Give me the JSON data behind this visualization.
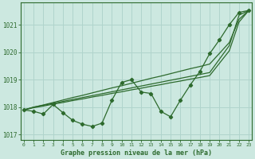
{
  "title": "Graphe pression niveau de la mer (hPa)",
  "bg_color": "#cce8e0",
  "line_color": "#2d6a2d",
  "grid_color": "#b0d4cc",
  "ylim": [
    1016.8,
    1021.8
  ],
  "xlim": [
    -0.3,
    23.3
  ],
  "yticks": [
    1017,
    1018,
    1019,
    1020,
    1021
  ],
  "xticks": [
    0,
    1,
    2,
    3,
    4,
    5,
    6,
    7,
    8,
    9,
    10,
    11,
    12,
    13,
    14,
    15,
    16,
    17,
    18,
    19,
    20,
    21,
    22,
    23
  ],
  "series_main": [
    1017.9,
    1017.85,
    1017.75,
    1018.1,
    1017.8,
    1017.52,
    1017.38,
    1017.3,
    1017.42,
    1018.25,
    1018.9,
    1019.0,
    1018.55,
    1018.5,
    1017.85,
    1017.65,
    1018.25,
    1018.8,
    1019.3,
    1019.95,
    1020.45,
    1021.0,
    1021.45,
    1021.52
  ],
  "series_line1": [
    1017.9,
    1018.0,
    1018.08,
    1018.17,
    1018.26,
    1018.35,
    1018.43,
    1018.52,
    1018.61,
    1018.7,
    1018.78,
    1018.87,
    1018.96,
    1019.05,
    1019.13,
    1019.22,
    1019.31,
    1019.4,
    1019.48,
    1019.57,
    1019.96,
    1020.35,
    1021.2,
    1021.52
  ],
  "series_line2": [
    1017.9,
    1018.0,
    1018.07,
    1018.14,
    1018.21,
    1018.28,
    1018.35,
    1018.42,
    1018.49,
    1018.56,
    1018.63,
    1018.7,
    1018.77,
    1018.84,
    1018.91,
    1018.98,
    1019.05,
    1019.12,
    1019.19,
    1019.26,
    1019.75,
    1020.24,
    1021.35,
    1021.52
  ],
  "series_line3": [
    1017.9,
    1017.98,
    1018.04,
    1018.11,
    1018.17,
    1018.24,
    1018.3,
    1018.37,
    1018.43,
    1018.5,
    1018.56,
    1018.63,
    1018.69,
    1018.76,
    1018.82,
    1018.89,
    1018.95,
    1019.02,
    1019.08,
    1019.15,
    1019.6,
    1020.05,
    1021.1,
    1021.52
  ]
}
